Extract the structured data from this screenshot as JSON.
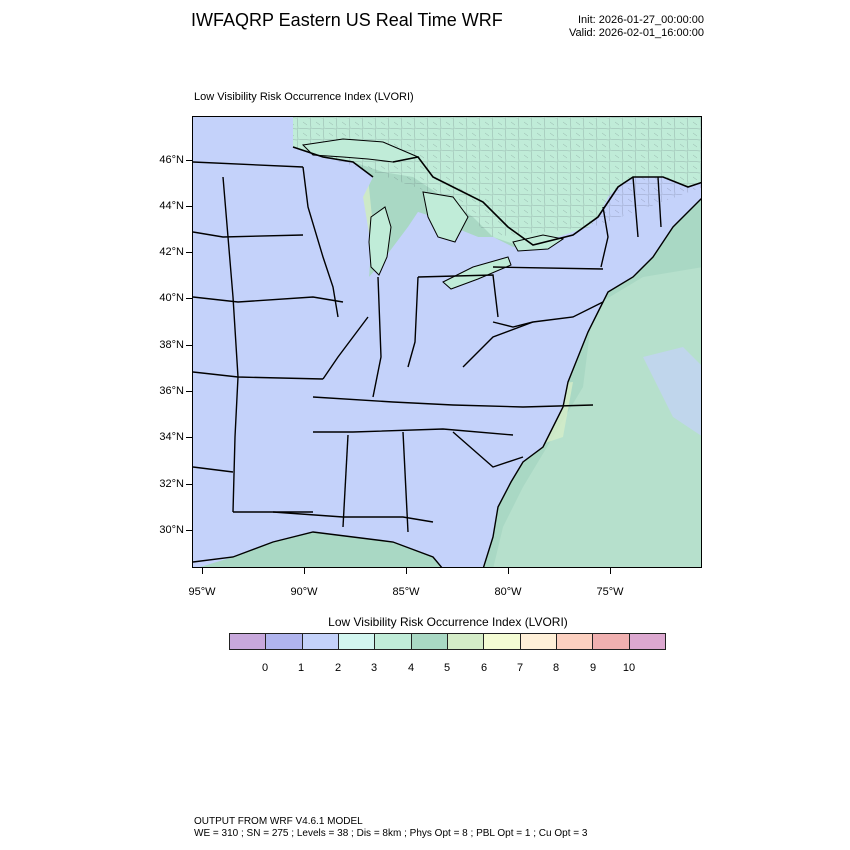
{
  "header": {
    "title": "IWFAQRP Eastern US Real Time WRF",
    "init": "Init: 2026-01-27_00:00:00",
    "valid": "Valid: 2026-02-01_16:00:00"
  },
  "plot": {
    "field_label": "Low Visibility Risk Occurrence Index   (LVORI)",
    "lat_labels": [
      "46°N",
      "44°N",
      "42°N",
      "40°N",
      "38°N",
      "36°N",
      "34°N",
      "32°N",
      "30°N"
    ],
    "lon_labels": [
      "95°W",
      "90°W",
      "85°W",
      "80°W",
      "75°W"
    ]
  },
  "legend": {
    "title": "Low Visibility Risk Occurrence Index  (LVORI)",
    "ticks": [
      "0",
      "1",
      "2",
      "3",
      "4",
      "5",
      "6",
      "7",
      "8",
      "9",
      "10"
    ],
    "colors": [
      "#c8a8dc",
      "#b0b4ee",
      "#c4d2fa",
      "#d2f6f0",
      "#c0ecd8",
      "#a9d8c4",
      "#d4ecc8",
      "#f4fcd4",
      "#fff0d8",
      "#fcd0c0",
      "#f0b0b0",
      "#dca8d0"
    ],
    "water_color": "#c4d2fa",
    "ocean_color": "#a9d8c4",
    "lake_color": "#c0ecd8"
  },
  "footer": {
    "line1": "OUTPUT FROM WRF V4.6.1 MODEL",
    "line2": "WE = 310 ; SN = 275 ; Levels = 38 ; Dis = 8km ; Phys Opt = 8 ; PBL Opt = 1 ; Cu Opt = 3"
  }
}
